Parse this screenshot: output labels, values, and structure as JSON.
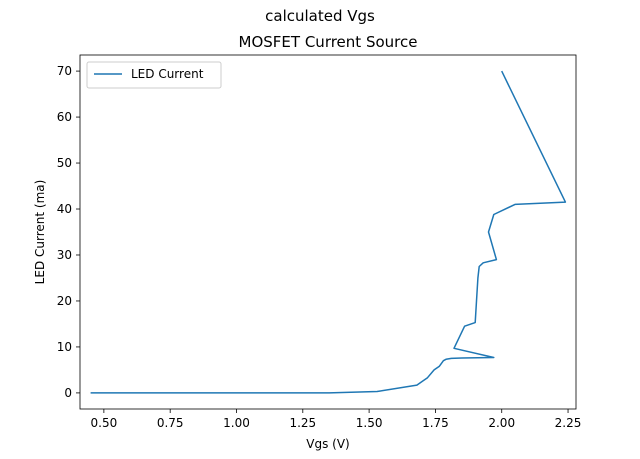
{
  "suptitle": "calculated Vgs",
  "chart_data": {
    "type": "line",
    "title": "MOSFET Current Source",
    "xlabel": "Vgs (V)",
    "ylabel": "LED Current (ma)",
    "xlim": [
      0.41,
      2.28
    ],
    "ylim": [
      -3.5,
      73.5
    ],
    "xticks": [
      "0.50",
      "0.75",
      "1.00",
      "1.25",
      "1.50",
      "1.75",
      "2.00",
      "2.25"
    ],
    "yticks": [
      "0",
      "10",
      "20",
      "30",
      "40",
      "50",
      "60",
      "70"
    ],
    "grid": false,
    "legend": "top-left",
    "series": [
      {
        "name": "LED Current",
        "color": "#1f77b4",
        "x": [
          0.45,
          1.35,
          1.53,
          1.68,
          1.72,
          1.745,
          1.765,
          1.78,
          1.79,
          1.81,
          1.85,
          1.97,
          1.82,
          1.86,
          1.9,
          1.905,
          1.91,
          1.915,
          1.93,
          1.98,
          1.95,
          1.97,
          2.05,
          2.24,
          2.0
        ],
        "y": [
          0,
          0,
          0.3,
          1.7,
          3.3,
          5,
          5.8,
          7,
          7.3,
          7.5,
          7.6,
          7.7,
          9.7,
          14.5,
          15.3,
          20,
          25,
          27.5,
          28.3,
          29,
          35,
          38.8,
          41,
          41.5,
          70
        ]
      }
    ]
  }
}
